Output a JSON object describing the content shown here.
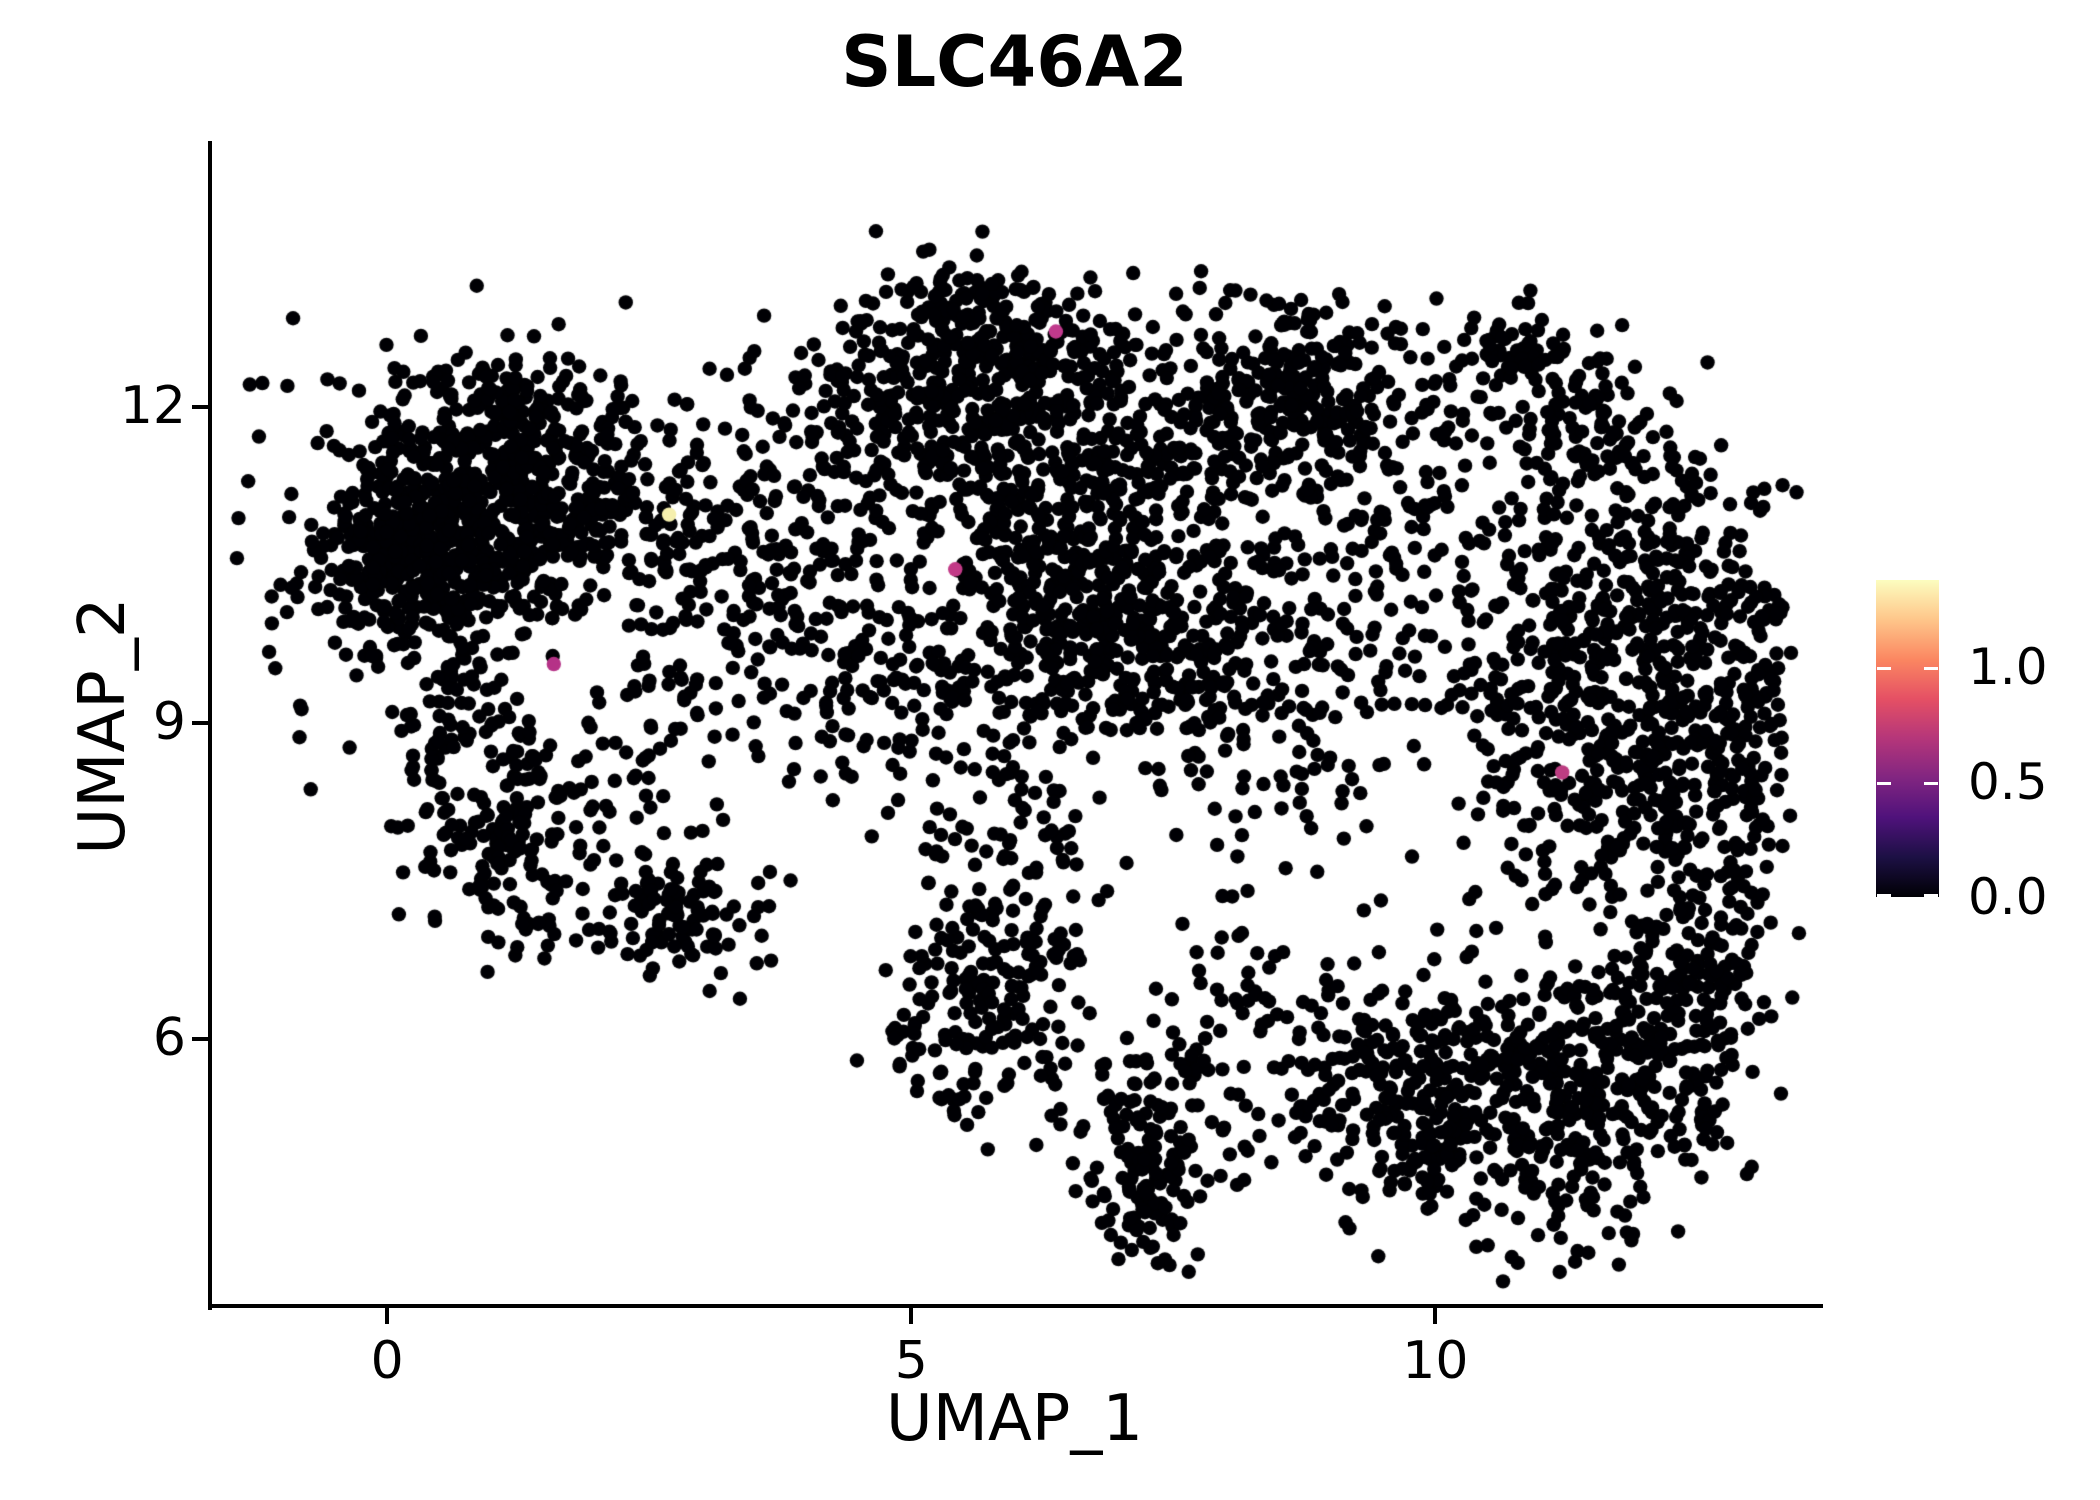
{
  "chart_data": {
    "type": "scatter",
    "title": "SLC46A2",
    "xlabel": "UMAP_1",
    "ylabel": "UMAP_2",
    "x_ticks": [
      0,
      5,
      10
    ],
    "y_ticks": [
      6,
      9,
      12
    ],
    "xlim": [
      -1.69,
      13.66
    ],
    "ylim": [
      3.46,
      14.53
    ],
    "grid": false,
    "point_color": "#000004",
    "point_radius_px": 7.2,
    "seed": 42,
    "colorbar": {
      "position": "right",
      "vmin": 0.0,
      "vmax": 1.38,
      "ticks": [
        {
          "label": "1.0",
          "value": 1.0
        },
        {
          "label": "0.5",
          "value": 0.5
        },
        {
          "label": "0.0",
          "value": 0.0
        }
      ],
      "colormap": "magma",
      "stops": [
        {
          "color": "#000004",
          "at": 0.0
        },
        {
          "color": "#1c1044",
          "at": 0.125
        },
        {
          "color": "#4f127b",
          "at": 0.25
        },
        {
          "color": "#812581",
          "at": 0.375
        },
        {
          "color": "#b5367a",
          "at": 0.5
        },
        {
          "color": "#e55064",
          "at": 0.625
        },
        {
          "color": "#fb8761",
          "at": 0.75
        },
        {
          "color": "#fec68a",
          "at": 0.875
        },
        {
          "color": "#fcfdbf",
          "at": 1.0
        }
      ]
    },
    "highlighted_points": [
      {
        "x": 6.38,
        "y": 12.72,
        "color": "#c0398c"
      },
      {
        "x": 2.69,
        "y": 10.98,
        "color": "#f5efad"
      },
      {
        "x": 5.42,
        "y": 10.46,
        "color": "#c23a87"
      },
      {
        "x": 1.59,
        "y": 9.56,
        "color": "#b53287"
      },
      {
        "x": 11.21,
        "y": 8.53,
        "color": "#bd3d82"
      }
    ],
    "clusters": [
      {
        "n": 520,
        "cx": 0.75,
        "cy": 11.0,
        "sx": 0.78,
        "sy": 0.62
      },
      {
        "n": 260,
        "cx": 0.3,
        "cy": 10.55,
        "sx": 0.45,
        "sy": 0.5
      },
      {
        "n": 150,
        "cx": 1.8,
        "cy": 11.3,
        "sx": 0.6,
        "sy": 0.5
      },
      {
        "n": 90,
        "cx": 0.9,
        "cy": 11.2,
        "sx": 1.1,
        "sy": 0.85
      },
      {
        "n": 50,
        "cx": 1.3,
        "cy": 12.0,
        "sx": 0.45,
        "sy": 0.3
      },
      {
        "n": 50,
        "cx": 0.9,
        "cy": 8.45,
        "type": "ring",
        "r": 0.55,
        "jitter": 0.12
      },
      {
        "n": 120,
        "cx": 1.15,
        "cy": 7.75,
        "sx": 0.45,
        "sy": 0.5
      },
      {
        "n": 60,
        "cx": 0.55,
        "cy": 9.15,
        "sx": 0.5,
        "sy": 0.4
      },
      {
        "n": 100,
        "cx": 2.85,
        "cy": 7.15,
        "sx": 0.42,
        "sy": 0.28
      },
      {
        "n": 40,
        "cx": 2.2,
        "cy": 8.2,
        "sx": 0.5,
        "sy": 0.5
      },
      {
        "n": 210,
        "cx": 3.6,
        "cy": 10.7,
        "sx": 0.75,
        "sy": 0.75
      },
      {
        "n": 60,
        "cx": 3.3,
        "cy": 9.4,
        "sx": 0.7,
        "sy": 0.5
      },
      {
        "n": 300,
        "cx": 5.35,
        "cy": 12.25,
        "sx": 0.62,
        "sy": 0.5
      },
      {
        "n": 140,
        "cx": 6.3,
        "cy": 12.35,
        "sx": 0.5,
        "sy": 0.4
      },
      {
        "n": 40,
        "cx": 5.55,
        "cy": 13.0,
        "sx": 0.3,
        "sy": 0.22
      },
      {
        "n": 420,
        "cx": 6.6,
        "cy": 10.3,
        "sx": 0.72,
        "sy": 0.75
      },
      {
        "n": 150,
        "cx": 7.4,
        "cy": 9.7,
        "sx": 0.5,
        "sy": 0.55
      },
      {
        "n": 130,
        "cx": 5.1,
        "cy": 9.3,
        "sx": 0.8,
        "sy": 0.55
      },
      {
        "n": 80,
        "cx": 5.9,
        "cy": 11.2,
        "sx": 0.7,
        "sy": 0.4
      },
      {
        "n": 150,
        "cx": 5.85,
        "cy": 6.6,
        "sx": 0.5,
        "sy": 0.55
      },
      {
        "n": 40,
        "cx": 5.45,
        "cy": 5.85,
        "sx": 0.3,
        "sy": 0.3
      },
      {
        "n": 60,
        "cx": 5.9,
        "cy": 7.9,
        "sx": 0.6,
        "sy": 0.45
      },
      {
        "n": 240,
        "cx": 8.5,
        "cy": 12.2,
        "sx": 0.6,
        "sy": 0.45
      },
      {
        "n": 70,
        "cx": 9.9,
        "cy": 12.0,
        "sx": 0.6,
        "sy": 0.4
      },
      {
        "n": 40,
        "cx": 10.75,
        "cy": 12.5,
        "sx": 0.22,
        "sy": 0.18
      },
      {
        "n": 70,
        "cx": 7.3,
        "cy": 11.6,
        "sx": 0.5,
        "sy": 0.5
      },
      {
        "n": 170,
        "cx": 9.2,
        "cy": 9.9,
        "sx": 1.05,
        "sy": 0.85
      },
      {
        "n": 50,
        "cx": 8.3,
        "cy": 8.7,
        "sx": 0.6,
        "sy": 0.6
      },
      {
        "n": 50,
        "cx": 9.3,
        "cy": 11.2,
        "sx": 0.7,
        "sy": 0.45
      },
      {
        "n": 300,
        "cx": 11.8,
        "cy": 10.2,
        "sx": 0.62,
        "sy": 0.7
      },
      {
        "n": 300,
        "cx": 12.1,
        "cy": 8.6,
        "sx": 0.62,
        "sy": 0.75
      },
      {
        "n": 110,
        "cx": 11.35,
        "cy": 11.9,
        "sx": 0.45,
        "sy": 0.4
      },
      {
        "n": 120,
        "cx": 12.9,
        "cy": 9.3,
        "sx": 0.3,
        "sy": 0.9
      },
      {
        "n": 80,
        "cx": 10.8,
        "cy": 9.0,
        "sx": 0.45,
        "sy": 0.8
      },
      {
        "n": 280,
        "cx": 10.6,
        "cy": 5.6,
        "sx": 0.8,
        "sy": 0.6
      },
      {
        "n": 220,
        "cx": 11.9,
        "cy": 5.9,
        "sx": 0.6,
        "sy": 0.65
      },
      {
        "n": 150,
        "cx": 9.6,
        "cy": 5.4,
        "sx": 0.55,
        "sy": 0.5
      },
      {
        "n": 120,
        "cx": 7.3,
        "cy": 5.2,
        "sx": 0.45,
        "sy": 0.55
      },
      {
        "n": 50,
        "cx": 7.25,
        "cy": 4.4,
        "sx": 0.28,
        "sy": 0.3
      },
      {
        "n": 60,
        "cx": 8.4,
        "cy": 6.3,
        "sx": 0.6,
        "sy": 0.5
      },
      {
        "n": 90,
        "cx": 12.6,
        "cy": 6.6,
        "sx": 0.35,
        "sy": 0.55
      },
      {
        "n": 60,
        "cx": 11.2,
        "cy": 4.5,
        "sx": 0.6,
        "sy": 0.35
      },
      {
        "n": 60,
        "cx": 7.8,
        "cy": 10.8,
        "sx": 0.9,
        "sy": 0.8
      },
      {
        "n": 40,
        "cx": 4.6,
        "cy": 11.6,
        "sx": 0.5,
        "sy": 0.6
      },
      {
        "n": 8,
        "cx": -0.9,
        "cy": 9.6,
        "sx": 0.25,
        "sy": 0.5
      }
    ]
  }
}
